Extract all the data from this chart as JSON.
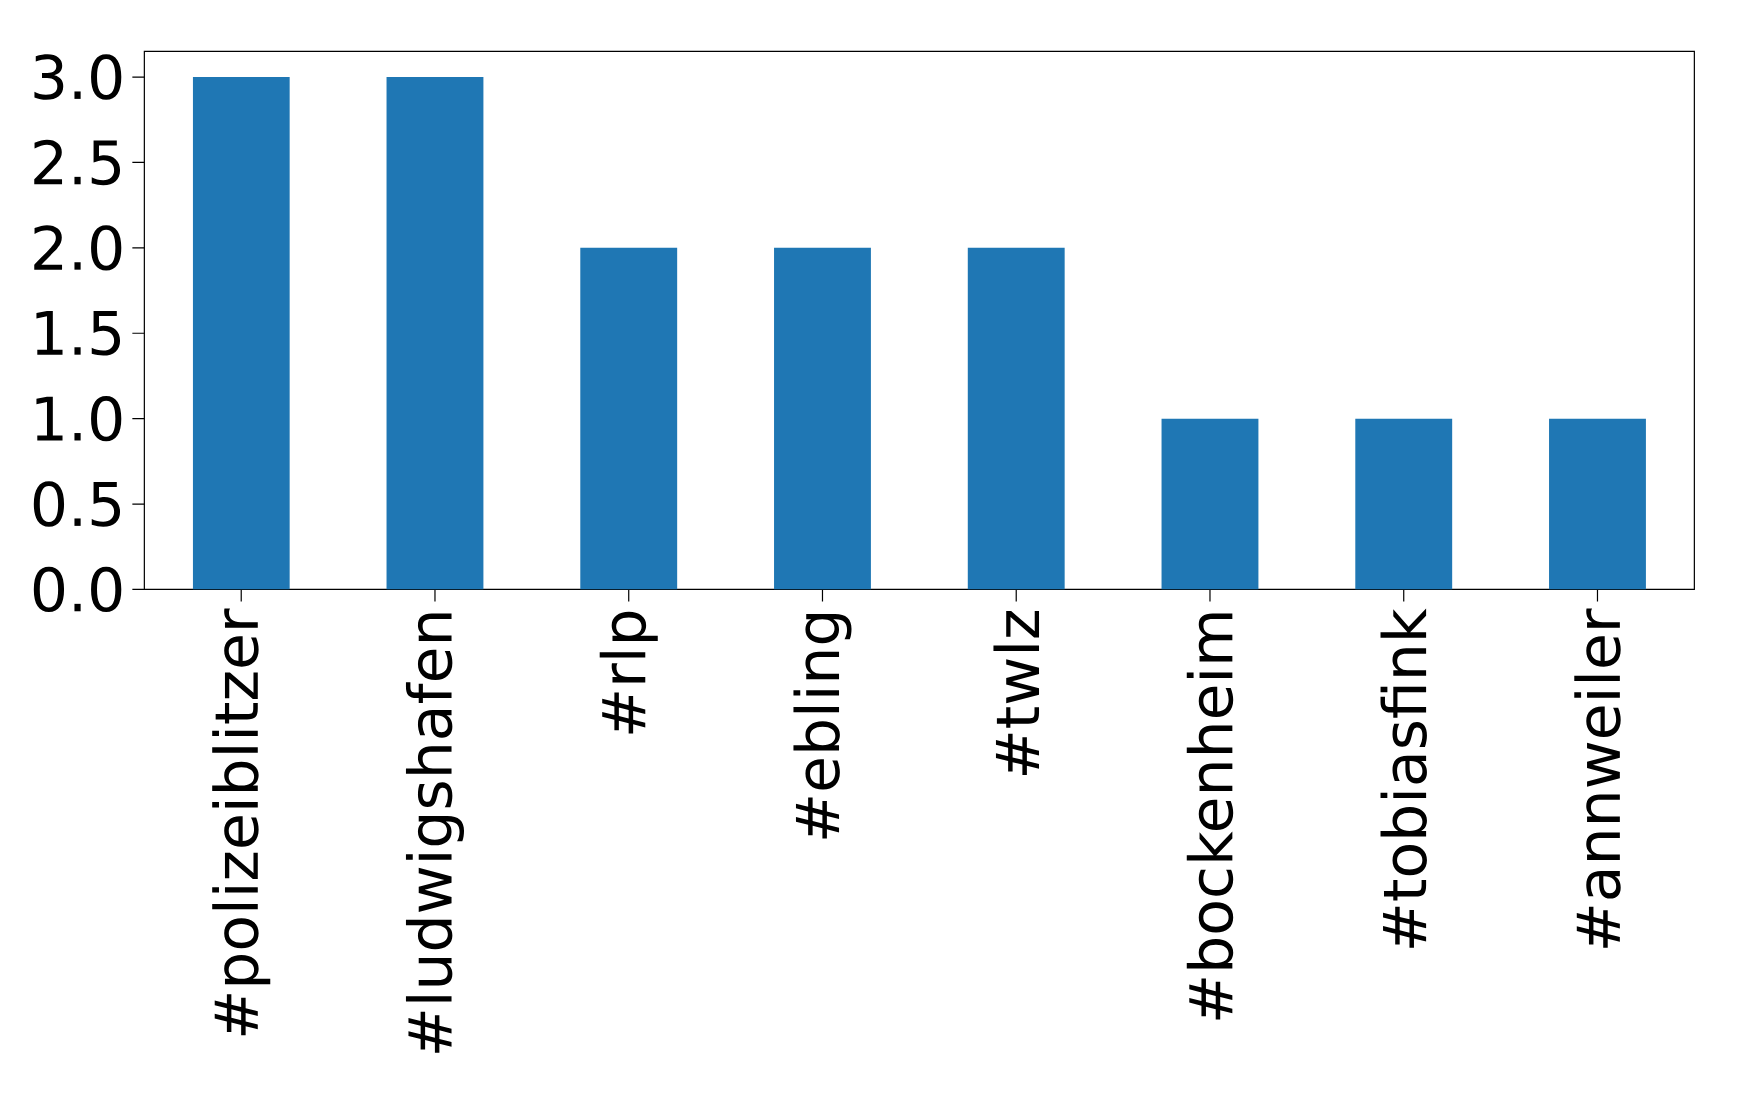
{
  "chart_data": {
    "type": "bar",
    "categories": [
      "#polizeiblitzer",
      "#ludwigshafen",
      "#rlp",
      "#ebling",
      "#twlz",
      "#bockenheim",
      "#tobiasfink",
      "#annweiler"
    ],
    "values": [
      3,
      3,
      2,
      2,
      2,
      1,
      1,
      1
    ],
    "color": "#1f77b4",
    "ylim": [
      0,
      3.15
    ],
    "yticks": [
      {
        "value": 0,
        "label": "0.0"
      },
      0.5,
      {
        "value": 1,
        "label": "1.0"
      },
      1.5,
      {
        "value": 2,
        "label": "2.0"
      },
      2.5,
      {
        "value": 3,
        "label": "3.0"
      }
    ],
    "grid": false,
    "legend": false
  }
}
